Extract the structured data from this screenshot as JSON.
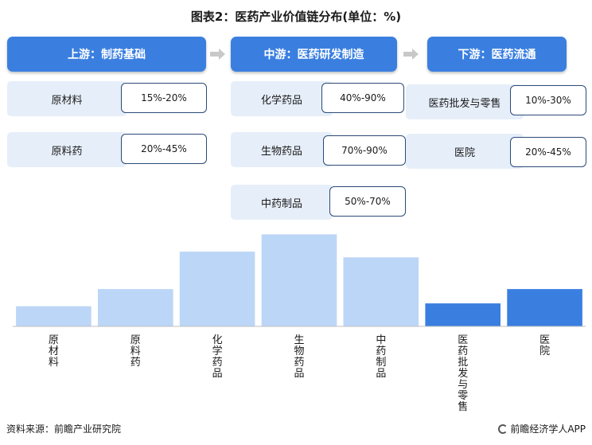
{
  "title": "图表2：医药产业价值链分布(单位：%)",
  "stages": [
    {
      "label": "上游：制药基础"
    },
    {
      "label": "中游：医药研发制造"
    },
    {
      "label": "下游：医药流通"
    }
  ],
  "items": {
    "up_1": {
      "name": "原材料",
      "range": "15%-20%"
    },
    "up_2": {
      "name": "原料药",
      "range": "20%-45%"
    },
    "mid_1": {
      "name": "化学药品",
      "range": "40%-90%"
    },
    "mid_2": {
      "name": "生物药品",
      "range": "70%-90%"
    },
    "mid_3": {
      "name": "中药制品",
      "range": "50%-70%"
    },
    "down_1": {
      "name": "医药批发与零售",
      "range": "10%-30%"
    },
    "down_2": {
      "name": "医院",
      "range": "20%-45%"
    }
  },
  "chart_data": {
    "type": "bar",
    "categories": [
      "原材料",
      "原料药",
      "化学药品",
      "生物药品",
      "中药制品",
      "医药批发与零售",
      "医院"
    ],
    "values": [
      17.5,
      32.5,
      65,
      80,
      60,
      20,
      32.5
    ],
    "ylim": [
      0,
      90
    ],
    "colors": [
      "#bcd6f7",
      "#bcd6f7",
      "#bcd6f7",
      "#bcd6f7",
      "#bcd6f7",
      "#3a7fe0",
      "#3a7fe0"
    ],
    "axis_color": "#bfbfbf",
    "grid": false
  },
  "footer": {
    "source": "资料来源：前瞻产业研究院",
    "brand": "前瞻经济学人APP"
  }
}
